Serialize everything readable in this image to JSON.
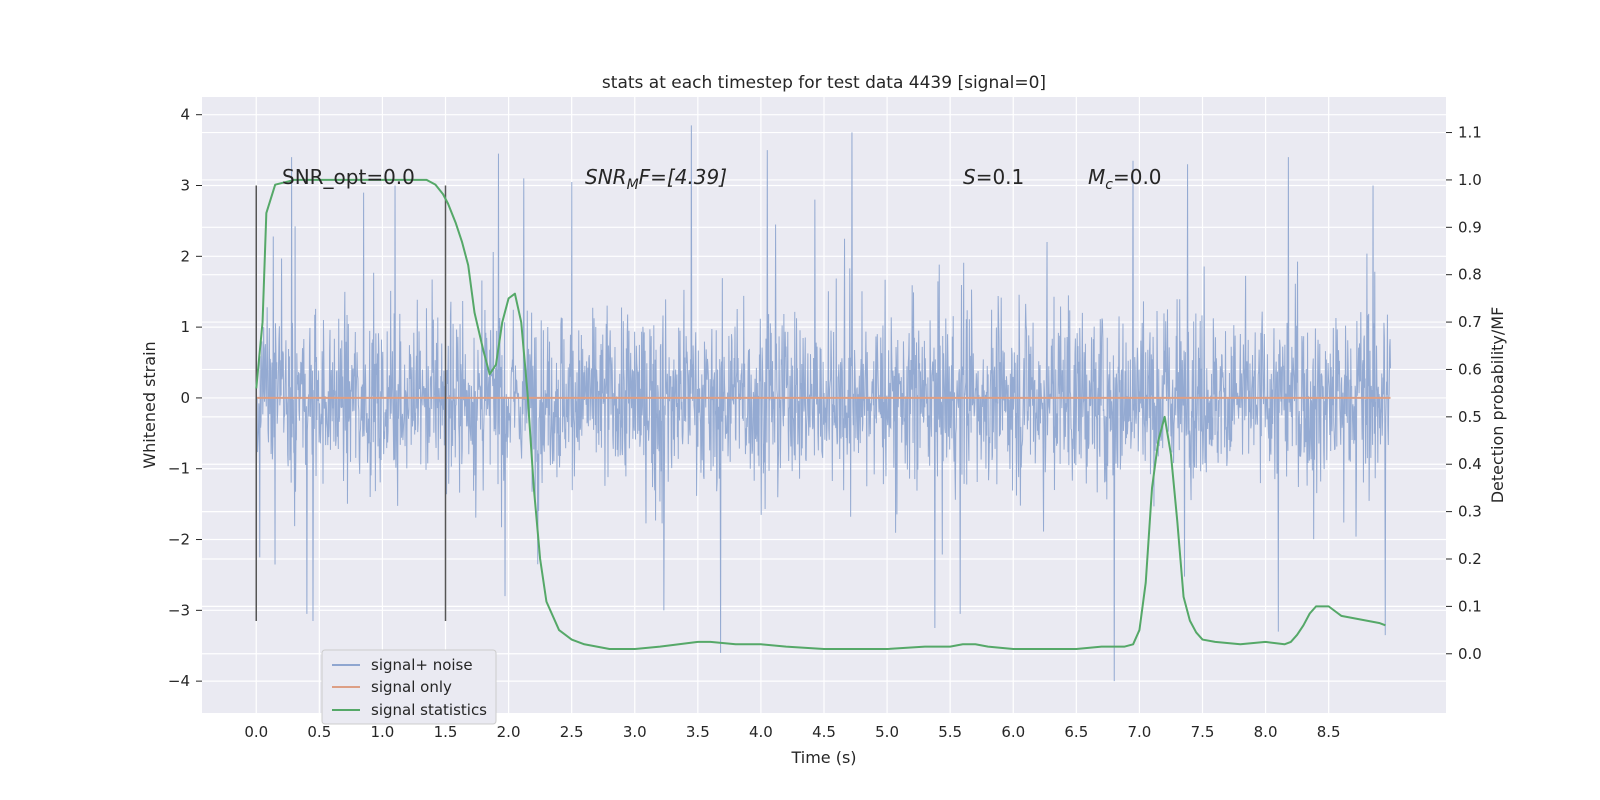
{
  "chart_data": {
    "type": "line",
    "title": "stats at each timestep for test data 4439 [signal=0]",
    "xlabel": "Time (s)",
    "ylabel": "Whitened strain",
    "y2label": "Detection probability/MF",
    "xlim": [
      -0.43,
      9.43
    ],
    "ylim": [
      -4.45,
      4.25
    ],
    "y2lim": [
      -0.125,
      1.175
    ],
    "x_ticks": [
      "0.0",
      "0.5",
      "1.0",
      "1.5",
      "2.0",
      "2.5",
      "3.0",
      "3.5",
      "4.0",
      "4.5",
      "5.0",
      "5.5",
      "6.0",
      "6.5",
      "7.0",
      "7.5",
      "8.0",
      "8.5"
    ],
    "y_ticks": [
      "4",
      "3",
      "2",
      "1",
      "0",
      "−1",
      "−2",
      "−3",
      "−4"
    ],
    "y2_ticks": [
      "1.1",
      "1.0",
      "0.9",
      "0.8",
      "0.7",
      "0.6",
      "0.5",
      "0.4",
      "0.3",
      "0.2",
      "0.1",
      "0.0"
    ],
    "grid": true,
    "legend_position": "lower-left",
    "vlines": [
      0.0,
      1.5
    ],
    "vline_range": [
      -3.15,
      3.0
    ],
    "annotations": {
      "snr_opt": "SNR_opt=0.0",
      "snr_mf_a": "SNR",
      "snr_mf_sub": "M",
      "snr_mf_b": "F=[4.39]",
      "s_sym": "S",
      "s_val": "=0.1",
      "mc_sym": "M",
      "mc_sub": "c",
      "mc_val": "=0.0"
    },
    "series": [
      {
        "name": "signal+ noise",
        "color": "#8fa6d0",
        "axis": "left",
        "t_range": [
          0.0,
          8.99
        ],
        "spikes": [
          {
            "x": 0.28,
            "y": 3.4
          },
          {
            "x": 0.4,
            "y": -3.05
          },
          {
            "x": 0.45,
            "y": -3.15
          },
          {
            "x": 0.85,
            "y": 2.9
          },
          {
            "x": 1.1,
            "y": 3.0
          },
          {
            "x": 1.92,
            "y": 3.45
          },
          {
            "x": 1.97,
            "y": -2.8
          },
          {
            "x": 2.12,
            "y": 3.1
          },
          {
            "x": 2.5,
            "y": 3.05
          },
          {
            "x": 3.23,
            "y": -3.0
          },
          {
            "x": 3.45,
            "y": 3.85
          },
          {
            "x": 3.68,
            "y": -3.6
          },
          {
            "x": 4.05,
            "y": 3.5
          },
          {
            "x": 4.72,
            "y": 3.75
          },
          {
            "x": 5.38,
            "y": -3.25
          },
          {
            "x": 5.58,
            "y": -3.05
          },
          {
            "x": 6.8,
            "y": -4.0
          },
          {
            "x": 6.95,
            "y": 3.35
          },
          {
            "x": 7.38,
            "y": 3.3
          },
          {
            "x": 8.18,
            "y": 3.4
          },
          {
            "x": 8.1,
            "y": -3.3
          },
          {
            "x": 8.85,
            "y": 3.0
          },
          {
            "x": 8.95,
            "y": -3.35
          }
        ]
      },
      {
        "name": "signal only",
        "color": "#dd9f85",
        "axis": "left",
        "x": [
          0.0,
          8.99
        ],
        "y": [
          0.0,
          0.0
        ]
      },
      {
        "name": "signal statistics",
        "color": "#55a868",
        "axis": "right",
        "x": [
          0.0,
          0.05,
          0.08,
          0.15,
          0.3,
          0.5,
          0.8,
          1.0,
          1.2,
          1.35,
          1.42,
          1.48,
          1.52,
          1.58,
          1.63,
          1.68,
          1.73,
          1.8,
          1.85,
          1.9,
          1.95,
          2.0,
          2.05,
          2.1,
          2.15,
          2.2,
          2.25,
          2.3,
          2.4,
          2.5,
          2.6,
          2.8,
          3.0,
          3.2,
          3.35,
          3.5,
          3.6,
          3.8,
          4.0,
          4.2,
          4.5,
          5.0,
          5.3,
          5.5,
          5.6,
          5.7,
          5.8,
          6.0,
          6.5,
          6.7,
          6.8,
          6.88,
          6.95,
          7.0,
          7.05,
          7.1,
          7.15,
          7.2,
          7.25,
          7.3,
          7.35,
          7.4,
          7.45,
          7.5,
          7.6,
          7.8,
          8.0,
          8.15,
          8.2,
          8.25,
          8.3,
          8.35,
          8.4,
          8.45,
          8.5,
          8.55,
          8.6,
          8.7,
          8.8,
          8.9,
          8.95
        ],
        "y": [
          0.56,
          0.7,
          0.93,
          0.99,
          1.0,
          1.0,
          1.0,
          1.0,
          1.0,
          1.0,
          0.99,
          0.97,
          0.95,
          0.91,
          0.87,
          0.82,
          0.72,
          0.64,
          0.59,
          0.61,
          0.7,
          0.75,
          0.76,
          0.7,
          0.55,
          0.35,
          0.2,
          0.11,
          0.05,
          0.03,
          0.02,
          0.01,
          0.01,
          0.015,
          0.02,
          0.025,
          0.025,
          0.02,
          0.02,
          0.015,
          0.01,
          0.01,
          0.015,
          0.015,
          0.02,
          0.02,
          0.015,
          0.01,
          0.01,
          0.015,
          0.015,
          0.015,
          0.02,
          0.05,
          0.15,
          0.35,
          0.45,
          0.5,
          0.42,
          0.28,
          0.12,
          0.07,
          0.045,
          0.03,
          0.025,
          0.02,
          0.025,
          0.02,
          0.025,
          0.04,
          0.06,
          0.085,
          0.1,
          0.1,
          0.1,
          0.09,
          0.08,
          0.075,
          0.07,
          0.065,
          0.06
        ]
      }
    ]
  }
}
